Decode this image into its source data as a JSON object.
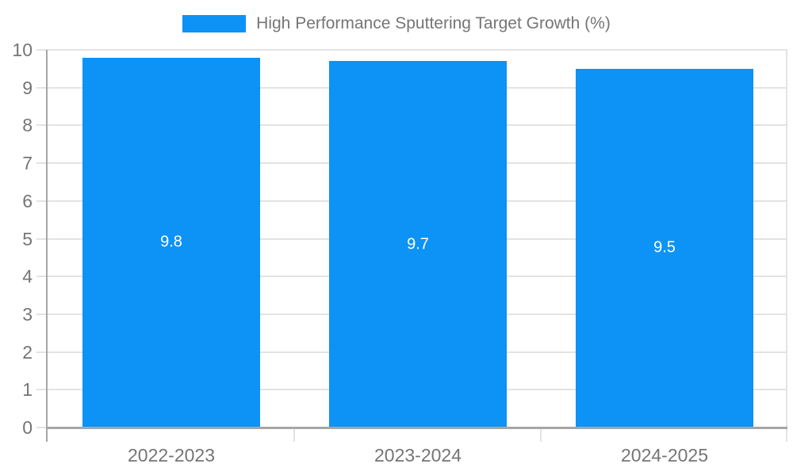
{
  "chart_data": {
    "type": "bar",
    "title": "High Performance Sputtering Target Growth (%)",
    "categories": [
      "2022-2023",
      "2023-2024",
      "2024-2025"
    ],
    "values": [
      9.8,
      9.7,
      9.5
    ],
    "data_labels": [
      "9.8",
      "9.7",
      "9.5"
    ],
    "ylim": [
      0,
      10
    ],
    "yticks": [
      0,
      1,
      2,
      3,
      4,
      5,
      6,
      7,
      8,
      9,
      10
    ],
    "ytick_labels": [
      "0",
      "1",
      "2",
      "3",
      "4",
      "5",
      "6",
      "7",
      "8",
      "9",
      "10"
    ],
    "xlabel": "",
    "ylabel": "",
    "grid": true,
    "legend": {
      "position": "top",
      "label": "High Performance Sputtering Target Growth (%)"
    },
    "colors": {
      "bar": "#0d92f5",
      "bar_value_label": "#ffffff",
      "grid": "#e3e3e3",
      "axis": "#a6a6a6",
      "tick_text": "#757575",
      "legend_text": "#757575",
      "background": "#ffffff"
    }
  }
}
